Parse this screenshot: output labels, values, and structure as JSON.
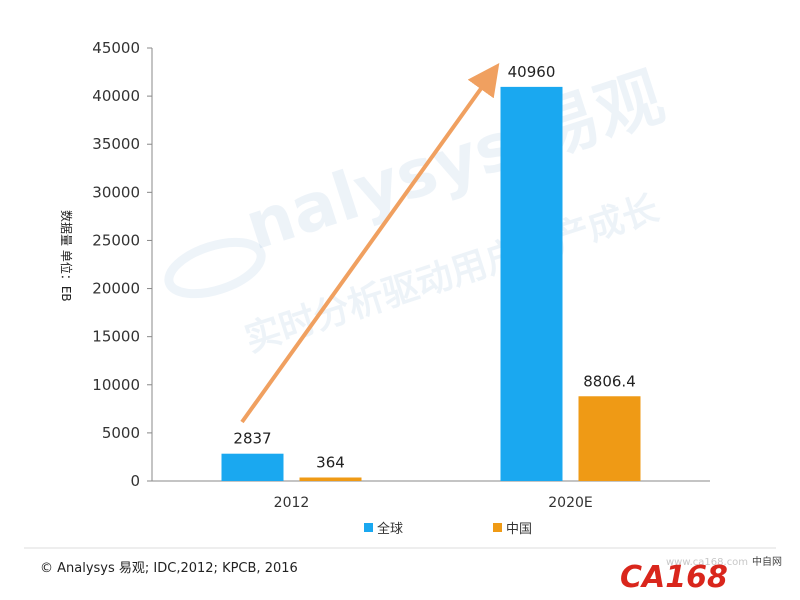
{
  "chart_data": {
    "type": "bar",
    "categories": [
      "2012",
      "2020E"
    ],
    "series": [
      {
        "name": "全球",
        "values": [
          2837,
          40960
        ]
      },
      {
        "name": "中国",
        "values": [
          364,
          8806.4
        ]
      }
    ],
    "data_labels": [
      [
        "2837",
        "364"
      ],
      [
        "40960",
        "8806.4"
      ]
    ],
    "ylabel": "数据量  单位：EB",
    "ylim": [
      0,
      45000
    ],
    "yticks": [
      0,
      5000,
      10000,
      15000,
      20000,
      25000,
      30000,
      35000,
      40000,
      45000
    ],
    "grid": false,
    "legend_position": "bottom",
    "annotations": [
      "growth-arrow from 2012 to 2020E"
    ]
  },
  "colors": {
    "series_global": "#1aa8f0",
    "series_china": "#ef9a15",
    "arrow": "#f0a060",
    "axis": "#888888"
  },
  "watermark": {
    "brand": "nalysys 易观",
    "slogan": "实时分析驱动用户资产成长"
  },
  "footer": {
    "source": "© Analysys 易观;  IDC,2012;  KPCB, 2016"
  },
  "logo": {
    "brand": "CA168",
    "site": "www.ca168.com",
    "tagline": "中自网"
  }
}
